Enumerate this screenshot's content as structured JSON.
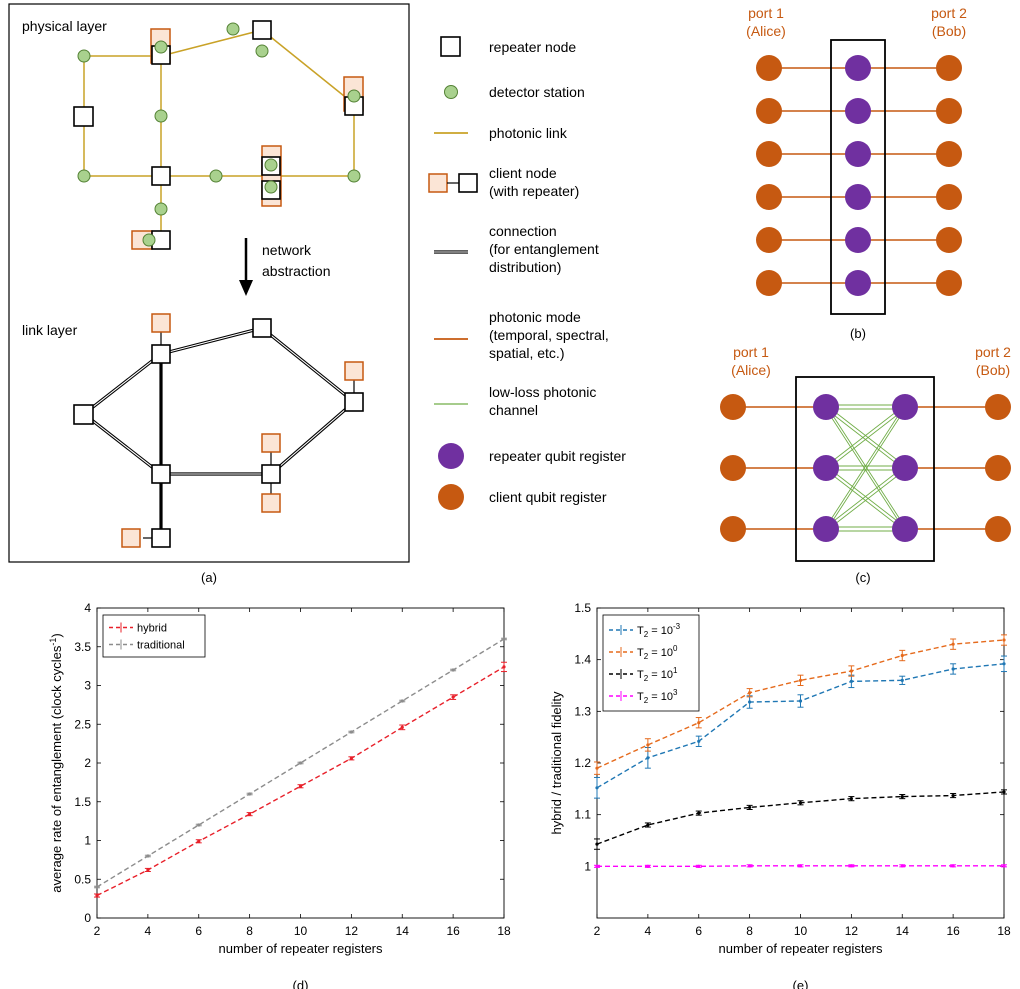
{
  "panel_a": {
    "physical_label": "physical layer",
    "link_label": "link layer",
    "abstraction_label_1": "network",
    "abstraction_label_2": "abstraction",
    "caption": "(a)"
  },
  "legend": {
    "repeater_node": "repeater node",
    "detector_station": "detector station",
    "photonic_link": "photonic link",
    "client_node_1": "client node",
    "client_node_2": "(with repeater)",
    "connection_1": "connection",
    "connection_2": "(for entanglement",
    "connection_3": "distribution)",
    "photonic_mode_1": "photonic mode",
    "photonic_mode_2": "(temporal, spectral,",
    "photonic_mode_3": "spatial, etc.)",
    "lowloss_1": "low-loss photonic",
    "lowloss_2": "channel",
    "repeater_qubit": "repeater qubit register",
    "client_qubit": "client qubit register"
  },
  "panel_b": {
    "port1_1": "port 1",
    "port1_2": "(Alice)",
    "port2_1": "port 2",
    "port2_2": "(Bob)",
    "caption": "(b)",
    "rows": 6
  },
  "panel_c": {
    "port1_1": "port 1",
    "port1_2": "(Alice)",
    "port2_1": "port 2",
    "port2_2": "(Bob)",
    "caption": "(c)",
    "rows": 3
  },
  "colors": {
    "orange": "#c65911",
    "purple": "#7030a0",
    "green_fill": "#a9d18e",
    "green_stroke": "#548235",
    "gold": "#c9a227",
    "client_fill": "#fbe5d6",
    "red_series": "#e8202a",
    "gray_series": "#8c8c8c",
    "blue_series": "#1f77b4",
    "orange_series": "#e56a1c",
    "black_series": "#000000",
    "magenta_series": "#ff00ff"
  },
  "chart_data": [
    {
      "type": "line",
      "caption": "(d)",
      "xlabel": "number of repeater registers",
      "ylabel": "average rate of entanglement (clock cycles",
      "ylabel_sup": "-1",
      "ylabel_close": ")",
      "xlim": [
        2,
        18
      ],
      "ylim": [
        0,
        4
      ],
      "x": [
        2,
        4,
        6,
        8,
        10,
        12,
        14,
        16,
        18
      ],
      "x_ticks": [
        "2",
        "4",
        "6",
        "8",
        "10",
        "12",
        "14",
        "16",
        "18"
      ],
      "y_ticks": [
        {
          "v": 0,
          "t": "0"
        },
        {
          "v": 0.5,
          "t": "0.5"
        },
        {
          "v": 1,
          "t": "1"
        },
        {
          "v": 1.5,
          "t": "1.5"
        },
        {
          "v": 2,
          "t": "2"
        },
        {
          "v": 2.5,
          "t": "2.5"
        },
        {
          "v": 3,
          "t": "3"
        },
        {
          "v": 3.5,
          "t": "3.5"
        },
        {
          "v": 4,
          "t": "4"
        }
      ],
      "legend_position": "top-left",
      "series": [
        {
          "name": "hybrid",
          "color": "#e8202a",
          "values": [
            0.29,
            0.62,
            0.99,
            1.34,
            1.7,
            2.06,
            2.46,
            2.85,
            3.24
          ],
          "err": [
            0.02,
            0.02,
            0.02,
            0.02,
            0.02,
            0.02,
            0.03,
            0.03,
            0.06
          ]
        },
        {
          "name": "traditional",
          "color": "#8c8c8c",
          "values": [
            0.4,
            0.8,
            1.2,
            1.6,
            2.0,
            2.4,
            2.8,
            3.2,
            3.6
          ],
          "err": [
            0.01,
            0.01,
            0.01,
            0.01,
            0.01,
            0.01,
            0.01,
            0.01,
            0.01
          ]
        }
      ]
    },
    {
      "type": "line",
      "caption": "(e)",
      "xlabel": "number of repeater registers",
      "ylabel": "hybrid / traditional fidelity",
      "xlim": [
        2,
        18
      ],
      "ylim": [
        0.9,
        1.5
      ],
      "x": [
        2,
        4,
        6,
        8,
        10,
        12,
        14,
        16,
        18
      ],
      "x_ticks": [
        "2",
        "4",
        "6",
        "8",
        "10",
        "12",
        "14",
        "16",
        "18"
      ],
      "y_ticks": [
        {
          "v": 1.0,
          "t": "1"
        },
        {
          "v": 1.1,
          "t": "1.1"
        },
        {
          "v": 1.2,
          "t": "1.2"
        },
        {
          "v": 1.3,
          "t": "1.3"
        },
        {
          "v": 1.4,
          "t": "1.4"
        },
        {
          "v": 1.5,
          "t": "1.5"
        }
      ],
      "legend_position": "top-left",
      "series": [
        {
          "name": "T",
          "sub": "2",
          "eq": " = 10",
          "exp": "-3",
          "color": "#1f77b4",
          "values": [
            1.152,
            1.21,
            1.242,
            1.318,
            1.32,
            1.358,
            1.36,
            1.382,
            1.392
          ],
          "err": [
            0.02,
            0.02,
            0.01,
            0.012,
            0.012,
            0.012,
            0.008,
            0.01,
            0.015
          ]
        },
        {
          "name": "T",
          "sub": "2",
          "eq": " = 10",
          "exp": "0",
          "color": "#e56a1c",
          "values": [
            1.19,
            1.235,
            1.278,
            1.336,
            1.36,
            1.378,
            1.408,
            1.43,
            1.438
          ],
          "err": [
            0.012,
            0.012,
            0.01,
            0.008,
            0.01,
            0.01,
            0.01,
            0.01,
            0.01
          ]
        },
        {
          "name": "T",
          "sub": "2",
          "eq": " = 10",
          "exp": "1",
          "color": "#000000",
          "values": [
            1.043,
            1.08,
            1.103,
            1.114,
            1.123,
            1.131,
            1.135,
            1.137,
            1.144
          ],
          "err": [
            0.01,
            0.004,
            0.004,
            0.004,
            0.004,
            0.004,
            0.004,
            0.004,
            0.004
          ]
        },
        {
          "name": "T",
          "sub": "2",
          "eq": " = 10",
          "exp": "3",
          "color": "#ff00ff",
          "values": [
            1.0,
            1.0,
            1.0,
            1.001,
            1.001,
            1.001,
            1.001,
            1.001,
            1.001
          ],
          "err": [
            0.002,
            0.002,
            0.002,
            0.002,
            0.002,
            0.002,
            0.002,
            0.002,
            0.002
          ]
        }
      ]
    }
  ]
}
